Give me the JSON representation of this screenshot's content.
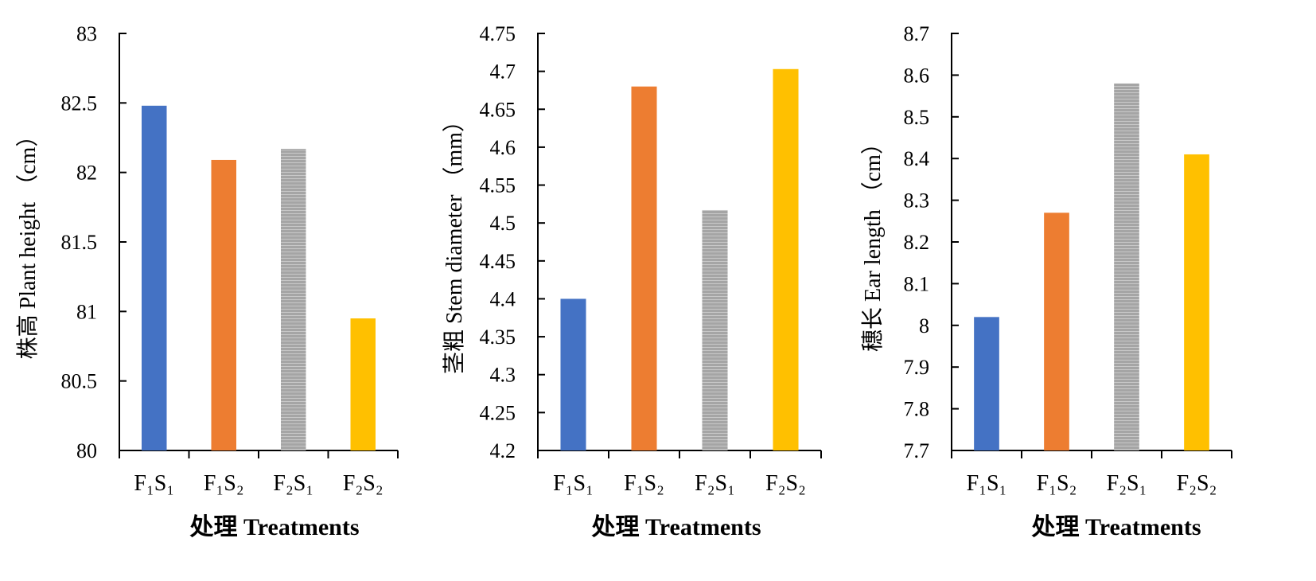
{
  "chart_data": [
    {
      "type": "bar",
      "ylabel": "株高 Plant height （cm）",
      "xlabel": "处理 Treatments",
      "categories": [
        "F₁S₁",
        "F₁S₂",
        "F₂S₁",
        "F₂S₂"
      ],
      "values": [
        82.48,
        82.09,
        82.17,
        80.95
      ],
      "colors": [
        "#4472C4",
        "#ED7D31",
        "#A5A5A5",
        "#FFC000"
      ],
      "ylim": [
        80,
        83
      ],
      "yticks": [
        "80",
        "80.5",
        "81",
        "81.5",
        "82",
        "82.5",
        "83"
      ]
    },
    {
      "type": "bar",
      "ylabel": "茎粗 Stem diameter （mm）",
      "xlabel": "处理 Treatments",
      "categories": [
        "F₁S₁",
        "F₁S₂",
        "F₂S₁",
        "F₂S₂"
      ],
      "values": [
        4.4,
        4.68,
        4.517,
        4.703
      ],
      "colors": [
        "#4472C4",
        "#ED7D31",
        "#A5A5A5",
        "#FFC000"
      ],
      "ylim": [
        4.2,
        4.75
      ],
      "yticks": [
        "4.2",
        "4.25",
        "4.3",
        "4.35",
        "4.4",
        "4.45",
        "4.5",
        "4.55",
        "4.6",
        "4.65",
        "4.7",
        "4.75"
      ]
    },
    {
      "type": "bar",
      "ylabel": "穗长 Ear length （cm）",
      "xlabel": "处理 Treatments",
      "categories": [
        "F₁S₁",
        "F₁S₂",
        "F₂S₁",
        "F₂S₂"
      ],
      "values": [
        8.02,
        8.27,
        8.58,
        8.41
      ],
      "colors": [
        "#4472C4",
        "#ED7D31",
        "#A5A5A5",
        "#FFC000"
      ],
      "ylim": [
        7.7,
        8.7
      ],
      "yticks": [
        "7.7",
        "7.8",
        "7.9",
        "8",
        "8.1",
        "8.2",
        "8.3",
        "8.4",
        "8.5",
        "8.6",
        "8.7"
      ]
    }
  ]
}
